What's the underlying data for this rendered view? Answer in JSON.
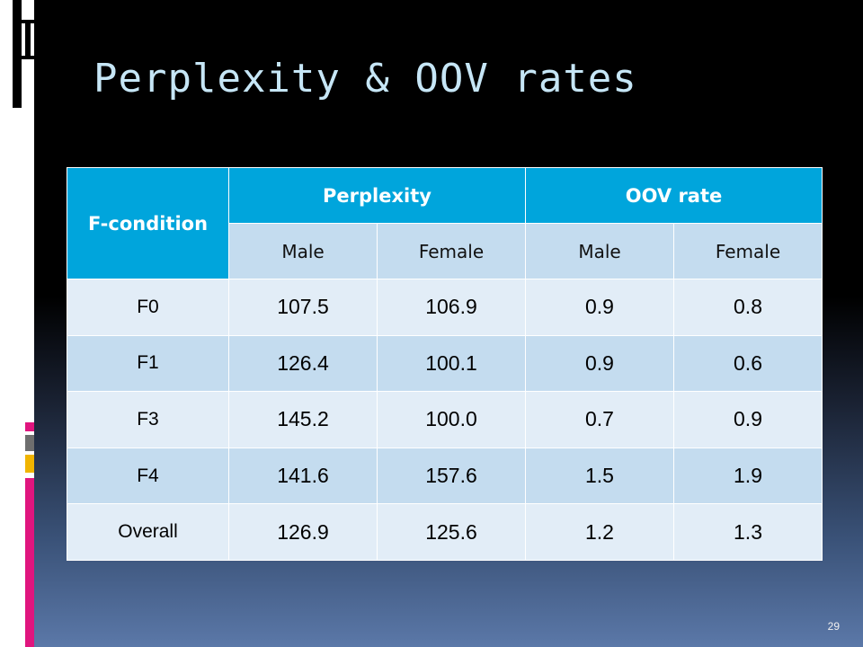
{
  "slide": {
    "title": "Perplexity & OOV rates",
    "page_number": "29"
  },
  "table": {
    "row_header": "F-condition",
    "group_headers": [
      "Perplexity",
      "OOV rate"
    ],
    "sub_headers": [
      "Male",
      "Female",
      "Male",
      "Female"
    ],
    "rows": [
      {
        "label": "F0",
        "values": [
          "107.5",
          "106.9",
          "0.9",
          "0.8"
        ]
      },
      {
        "label": "F1",
        "values": [
          "126.4",
          "100.1",
          "0.9",
          "0.6"
        ]
      },
      {
        "label": "F3",
        "values": [
          "145.2",
          "100.0",
          "0.7",
          "0.9"
        ]
      },
      {
        "label": "F4",
        "values": [
          "141.6",
          "157.6",
          "1.5",
          "1.9"
        ]
      },
      {
        "label": "Overall",
        "values": [
          "126.9",
          "125.6",
          "1.2",
          "1.3"
        ]
      }
    ]
  },
  "colors": {
    "header_fill": "#00a5dc",
    "row_light": "#e2edf7",
    "row_dark": "#c4dcef",
    "title_text": "#c6e6f6",
    "accent_pink": "#e0157e",
    "accent_gold": "#f0b400",
    "accent_gray": "#6e6e6e"
  }
}
